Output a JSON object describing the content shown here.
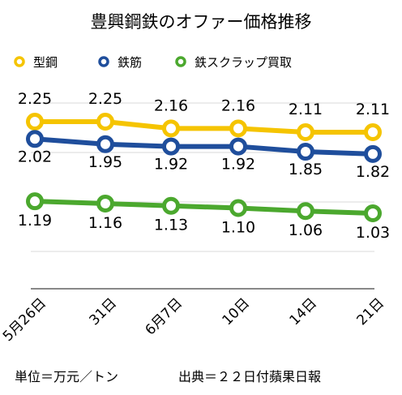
{
  "chart_data": {
    "type": "line",
    "title": "豊興鋼鉄のオファー価格推移",
    "categories": [
      "5月26日",
      "31日",
      "6月7日",
      "10日",
      "14日",
      "21日"
    ],
    "series": [
      {
        "name": "型鋼",
        "color": "#F5C400",
        "values": [
          2.25,
          2.25,
          2.16,
          2.16,
          2.11,
          2.11
        ],
        "labels": [
          "2.25",
          "2.25",
          "2.16",
          "2.16",
          "2.11",
          "2.11"
        ]
      },
      {
        "name": "鉄筋",
        "color": "#1F4E9C",
        "values": [
          2.02,
          1.95,
          1.92,
          1.92,
          1.85,
          1.82
        ],
        "labels": [
          "2.02",
          "1.95",
          "1.92",
          "1.92",
          "1.85",
          "1.82"
        ]
      },
      {
        "name": "鉄スクラップ買取",
        "color": "#4BA82E",
        "values": [
          1.19,
          1.16,
          1.13,
          1.1,
          1.06,
          1.03
        ],
        "labels": [
          "1.19",
          "1.16",
          "1.13",
          "1.10",
          "1.06",
          "1.03"
        ]
      }
    ],
    "legend_position": "top",
    "grid": true
  },
  "footer": {
    "unit": "単位＝万元／トン",
    "source": "出典＝２２日付蘋果日報"
  },
  "colors": {
    "grid": "#D9D9D9",
    "axis": "#404040",
    "marker_fill": "#ffffff"
  }
}
